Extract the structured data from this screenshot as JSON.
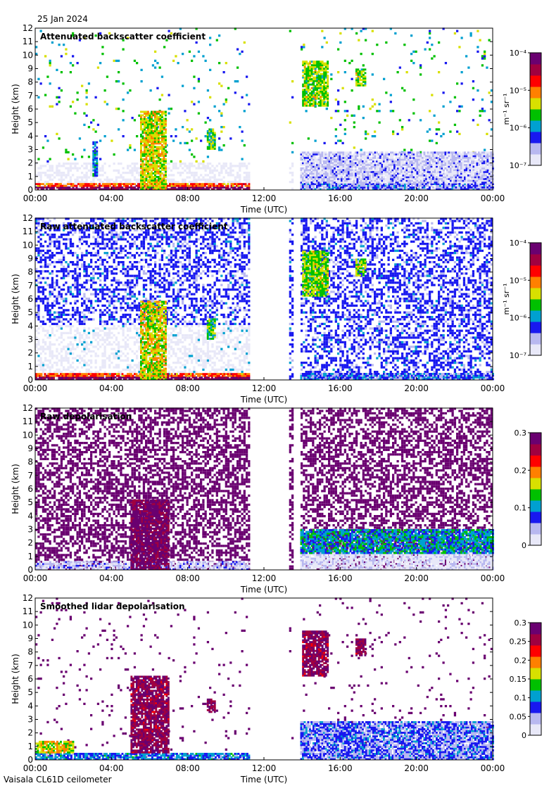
{
  "date": "25 Jan 2024",
  "footer": "Vaisala CL61D ceilometer",
  "colors": {
    "frame": "#000000",
    "background": "#ffffff",
    "colormap": [
      "#e8e8f8",
      "#b8b8f0",
      "#1818f0",
      "#00a0d0",
      "#00c000",
      "#d8e000",
      "#ff8000",
      "#ff0000",
      "#a00040",
      "#6a0070"
    ]
  },
  "chart_data": [
    {
      "type": "heatmap",
      "title": "Attenuated backscatter coefficient",
      "xlabel": "Time (UTC)",
      "ylabel": "Height (km)",
      "xticks": [
        "00:00",
        "04:00",
        "08:00",
        "12:00",
        "16:00",
        "20:00",
        "00:00"
      ],
      "yticks": [
        "0",
        "1",
        "2",
        "3",
        "4",
        "5",
        "6",
        "7",
        "8",
        "9",
        "10",
        "11",
        "12"
      ],
      "xlim_hours": [
        0,
        24
      ],
      "ylim_km": [
        0,
        12
      ],
      "colorbar": {
        "scale": "log",
        "ticks": [
          "10⁻⁷",
          "10⁻⁶",
          "10⁻⁵",
          "10⁻⁴"
        ],
        "label": "m⁻¹ sr⁻¹"
      },
      "data_gaps_hours": [
        [
          11.2,
          13.3
        ],
        [
          13.5,
          13.9
        ]
      ],
      "noise": "low",
      "features": [
        {
          "t0": 0,
          "t1": 11.2,
          "h0": 0,
          "h1": 0.25,
          "level": 0.92
        },
        {
          "t0": 0,
          "t1": 11.2,
          "h0": 0.25,
          "h1": 0.4,
          "level": 0.7
        },
        {
          "t0": 5.5,
          "t1": 6.8,
          "h0": 0,
          "h1": 5.8,
          "level": 0.55
        },
        {
          "t0": 3.0,
          "t1": 3.2,
          "h0": 1.0,
          "h1": 3.5,
          "level": 0.3
        },
        {
          "t0": 9.0,
          "t1": 9.4,
          "h0": 3.0,
          "h1": 4.5,
          "level": 0.45
        },
        {
          "t0": 14.0,
          "t1": 15.3,
          "h0": 6.2,
          "h1": 9.5,
          "level": 0.5
        },
        {
          "t0": 16.8,
          "t1": 17.3,
          "h0": 7.7,
          "h1": 9.0,
          "level": 0.5
        },
        {
          "t0": 13.9,
          "t1": 24,
          "h0": 0,
          "h1": 0.5,
          "level": 0.22
        },
        {
          "t0": 13.9,
          "t1": 24,
          "h0": 0.5,
          "h1": 2.8,
          "level": 0.12
        }
      ]
    },
    {
      "type": "heatmap",
      "title": "Raw attenuated backscatter coefficient",
      "xlabel": "Time (UTC)",
      "ylabel": "Height (km)",
      "xticks": [
        "00:00",
        "04:00",
        "08:00",
        "12:00",
        "16:00",
        "20:00",
        "00:00"
      ],
      "yticks": [
        "0",
        "1",
        "2",
        "3",
        "4",
        "5",
        "6",
        "7",
        "8",
        "9",
        "10",
        "11",
        "12"
      ],
      "xlim_hours": [
        0,
        24
      ],
      "ylim_km": [
        0,
        12
      ],
      "colorbar": {
        "scale": "log",
        "ticks": [
          "10⁻⁷",
          "10⁻⁶",
          "10⁻⁵",
          "10⁻⁴"
        ],
        "label": "m⁻¹ sr⁻¹"
      },
      "data_gaps_hours": [
        [
          11.2,
          13.3
        ],
        [
          13.5,
          13.9
        ]
      ],
      "noise": "high-blue",
      "features": [
        {
          "t0": 0,
          "t1": 11.2,
          "h0": 0,
          "h1": 0.25,
          "level": 0.92
        },
        {
          "t0": 0,
          "t1": 11.2,
          "h0": 0.25,
          "h1": 0.4,
          "level": 0.7
        },
        {
          "t0": 5.5,
          "t1": 6.8,
          "h0": 0,
          "h1": 5.8,
          "level": 0.55
        },
        {
          "t0": 9.0,
          "t1": 9.4,
          "h0": 3.0,
          "h1": 4.5,
          "level": 0.45
        },
        {
          "t0": 14.0,
          "t1": 15.3,
          "h0": 6.2,
          "h1": 9.5,
          "level": 0.5
        },
        {
          "t0": 16.8,
          "t1": 17.3,
          "h0": 7.7,
          "h1": 9.0,
          "level": 0.5
        },
        {
          "t0": 13.9,
          "t1": 24,
          "h0": 0,
          "h1": 0.5,
          "level": 0.25
        }
      ]
    },
    {
      "type": "heatmap",
      "title": "Raw depolarisation",
      "xlabel": "Time (UTC)",
      "ylabel": "Height (km)",
      "xticks": [
        "00:00",
        "04:00",
        "08:00",
        "12:00",
        "16:00",
        "20:00",
        "00:00"
      ],
      "yticks": [
        "0",
        "1",
        "2",
        "3",
        "4",
        "5",
        "6",
        "7",
        "8",
        "9",
        "10",
        "11",
        "12"
      ],
      "xlim_hours": [
        0,
        24
      ],
      "ylim_km": [
        0,
        12
      ],
      "colorbar": {
        "scale": "linear",
        "ticks": [
          "0",
          "0.1",
          "0.2",
          "0.3"
        ],
        "label": ""
      },
      "data_gaps_hours": [
        [
          11.2,
          13.3
        ],
        [
          13.5,
          13.9
        ]
      ],
      "noise": "high-purple",
      "features": [
        {
          "t0": 0,
          "t1": 11.2,
          "h0": 0,
          "h1": 0.6,
          "level": 0.12
        },
        {
          "t0": 5.0,
          "t1": 7.0,
          "h0": 0,
          "h1": 5.2,
          "level": 0.95
        },
        {
          "t0": 13.9,
          "t1": 24,
          "h0": 0,
          "h1": 1.2,
          "level": 0.06
        },
        {
          "t0": 13.9,
          "t1": 24,
          "h0": 1.2,
          "h1": 3.0,
          "level": 0.35
        }
      ]
    },
    {
      "type": "heatmap",
      "title": "Smoothed lidar depolarisation",
      "xlabel": "Time (UTC)",
      "ylabel": "Height (km)",
      "xticks": [
        "00:00",
        "04:00",
        "08:00",
        "12:00",
        "16:00",
        "20:00",
        "00:00"
      ],
      "yticks": [
        "0",
        "1",
        "2",
        "3",
        "4",
        "5",
        "6",
        "7",
        "8",
        "9",
        "10",
        "11",
        "12"
      ],
      "xlim_hours": [
        0,
        24
      ],
      "ylim_km": [
        0,
        12
      ],
      "colorbar": {
        "scale": "linear",
        "ticks": [
          "0",
          "0.05",
          "0.1",
          "0.15",
          "0.2",
          "0.25",
          "0.3"
        ],
        "label": ""
      },
      "data_gaps_hours": [
        [
          11.2,
          13.3
        ],
        [
          13.5,
          13.9
        ]
      ],
      "noise": "sparse-purple",
      "features": [
        {
          "t0": 0,
          "t1": 11.2,
          "h0": 0,
          "h1": 0.5,
          "level": 0.3
        },
        {
          "t0": 0,
          "t1": 2.0,
          "h0": 0.5,
          "h1": 1.3,
          "level": 0.55
        },
        {
          "t0": 5.0,
          "t1": 7.0,
          "h0": 0.5,
          "h1": 6.2,
          "level": 0.9
        },
        {
          "t0": 9.0,
          "t1": 9.4,
          "h0": 3.5,
          "h1": 4.5,
          "level": 0.9
        },
        {
          "t0": 14.0,
          "t1": 15.3,
          "h0": 6.2,
          "h1": 9.5,
          "level": 0.9
        },
        {
          "t0": 16.8,
          "t1": 17.3,
          "h0": 7.7,
          "h1": 9.0,
          "level": 0.9
        },
        {
          "t0": 13.9,
          "t1": 24,
          "h0": 0,
          "h1": 2.8,
          "level": 0.22
        }
      ]
    }
  ]
}
